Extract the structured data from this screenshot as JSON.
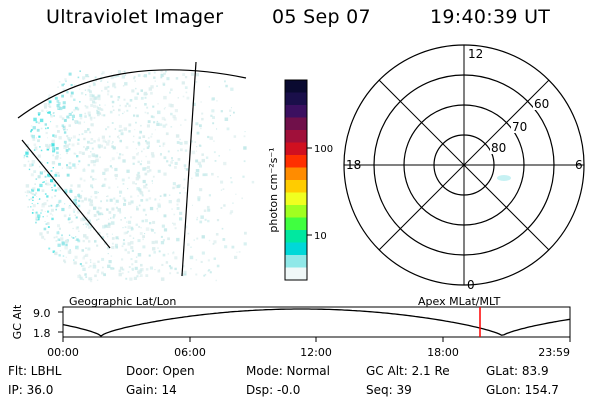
{
  "header": {
    "instrument": "Ultraviolet Imager",
    "date": "05 Sep 07",
    "time": "19:40:39 UT"
  },
  "colorbar": {
    "unit_label": "photon cm⁻²s⁻¹",
    "ticks": [
      "100",
      "10"
    ],
    "colors": [
      "#0a0a30",
      "#1a0f4a",
      "#3b1060",
      "#70104a",
      "#a0103a",
      "#d01020",
      "#ff3000",
      "#ff8c00",
      "#ffcc00",
      "#f0ff20",
      "#a0ff20",
      "#40ff40",
      "#00e8a0",
      "#00d8d8",
      "#90e8e8",
      "#f0f8f8"
    ]
  },
  "polar_plot": {
    "mlt_labels": [
      "12",
      "18",
      "6",
      "0"
    ],
    "lat_labels": [
      "60",
      "70",
      "80"
    ]
  },
  "orbit_panel": {
    "left_label": "Geographic Lat/Lon",
    "right_label": "Apex MLat/MLT",
    "y_axis_label": "GC Alt",
    "y_ticks": [
      "9.0",
      "1.8"
    ],
    "x_ticks": [
      "00:00",
      "06:00",
      "12:00",
      "18:00",
      "23:59"
    ],
    "marker_color": "#ff0000"
  },
  "info_rows": [
    [
      {
        "label": "Flt: LBHL"
      },
      {
        "label": "Door: Open"
      },
      {
        "label": "Mode: Normal"
      },
      {
        "label": "GC Alt: 2.1 Re"
      },
      {
        "label": "GLat:  83.9"
      }
    ],
    [
      {
        "label": "IP: 36.0"
      },
      {
        "label": "Gain: 14"
      },
      {
        "label": "Dsp:   -0.0"
      },
      {
        "label": "Seq: 39"
      },
      {
        "label": "GLon: 154.7"
      }
    ]
  ]
}
